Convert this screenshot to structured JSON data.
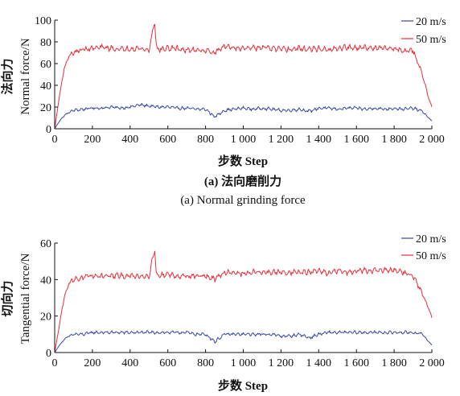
{
  "chart_data": [
    {
      "type": "line",
      "caption_cn": "(a) 法向磨削力",
      "caption_en": "(a) Normal grinding force",
      "xlabel": "步数  Step",
      "ylabel_cn": "法向力",
      "ylabel_en": "Normal force/N",
      "xlim": [
        0,
        2000
      ],
      "ylim": [
        0,
        100
      ],
      "xticks": [
        "0",
        "200",
        "400",
        "600",
        "800",
        "1 000",
        "1 200",
        "1 400",
        "1 600",
        "1 800",
        "2 000"
      ],
      "yticks": [
        "0",
        "20",
        "40",
        "60",
        "80",
        "100"
      ],
      "legend_position": "top-right",
      "series": [
        {
          "name": "20 m/s",
          "color": "#3848a8",
          "x": [
            0,
            25,
            50,
            75,
            100,
            150,
            200,
            250,
            300,
            350,
            400,
            450,
            500,
            550,
            600,
            650,
            700,
            750,
            800,
            850,
            900,
            950,
            1000,
            1050,
            1100,
            1150,
            1200,
            1250,
            1300,
            1350,
            1400,
            1450,
            1500,
            1550,
            1600,
            1650,
            1700,
            1750,
            1800,
            1850,
            1900,
            1950,
            2000
          ],
          "values": [
            0,
            7,
            12,
            15,
            17,
            18,
            19,
            19,
            20,
            19,
            20,
            22,
            21,
            20,
            20,
            19,
            19,
            18,
            18,
            11,
            17,
            18,
            19,
            18,
            19,
            18,
            17,
            17,
            18,
            16,
            19,
            19,
            18,
            19,
            19,
            18,
            19,
            18,
            19,
            18,
            19,
            16,
            7
          ]
        },
        {
          "name": "50 m/s",
          "color": "#e8303a",
          "x": [
            0,
            25,
            50,
            75,
            100,
            150,
            200,
            250,
            300,
            350,
            400,
            450,
            500,
            530,
            540,
            550,
            600,
            650,
            700,
            750,
            800,
            850,
            900,
            950,
            1000,
            1050,
            1100,
            1150,
            1200,
            1250,
            1300,
            1350,
            1400,
            1450,
            1500,
            1550,
            1600,
            1650,
            1700,
            1750,
            1800,
            1850,
            1900,
            1950,
            1980,
            2000
          ],
          "values": [
            0,
            30,
            55,
            67,
            70,
            73,
            74,
            75,
            74,
            73,
            74,
            74,
            72,
            100,
            73,
            73,
            74,
            74,
            72,
            73,
            72,
            70,
            76,
            75,
            74,
            74,
            75,
            74,
            73,
            73,
            74,
            73,
            74,
            72,
            74,
            75,
            74,
            75,
            74,
            74,
            74,
            72,
            72,
            50,
            30,
            20
          ]
        }
      ]
    },
    {
      "type": "line",
      "xlabel": "步数  Step",
      "ylabel_cn": "切向力",
      "ylabel_en": "Tangential force/N",
      "xlim": [
        0,
        2000
      ],
      "ylim": [
        0,
        60
      ],
      "xticks": [
        "0",
        "200",
        "400",
        "600",
        "800",
        "1 000",
        "1 200",
        "1 400",
        "1 600",
        "1 800",
        "2 000"
      ],
      "yticks": [
        "0",
        "20",
        "40",
        "60"
      ],
      "legend_position": "top-right",
      "series": [
        {
          "name": "20 m/s",
          "color": "#3848a8",
          "x": [
            0,
            25,
            50,
            75,
            100,
            150,
            200,
            250,
            300,
            350,
            400,
            450,
            500,
            550,
            600,
            650,
            700,
            750,
            800,
            850,
            900,
            950,
            1000,
            1050,
            1100,
            1150,
            1200,
            1250,
            1300,
            1350,
            1400,
            1450,
            1500,
            1550,
            1600,
            1650,
            1700,
            1750,
            1800,
            1850,
            1900,
            1950,
            2000
          ],
          "values": [
            0,
            4,
            7,
            9,
            10,
            10,
            11,
            11,
            11,
            11,
            11,
            11,
            11,
            11,
            11,
            11,
            11,
            10,
            10,
            6,
            10,
            10,
            10,
            10,
            10,
            10,
            9,
            9,
            10,
            8,
            10,
            11,
            11,
            11,
            11,
            11,
            11,
            11,
            11,
            11,
            11,
            10,
            4
          ]
        },
        {
          "name": "50 m/s",
          "color": "#e8303a",
          "x": [
            0,
            25,
            50,
            75,
            100,
            150,
            200,
            250,
            300,
            350,
            400,
            450,
            500,
            530,
            540,
            550,
            600,
            650,
            700,
            750,
            800,
            850,
            900,
            950,
            1000,
            1050,
            1100,
            1150,
            1200,
            1250,
            1300,
            1350,
            1400,
            1450,
            1500,
            1550,
            1600,
            1650,
            1700,
            1750,
            1800,
            1850,
            1900,
            1950,
            1980,
            2000
          ],
          "values": [
            0,
            15,
            30,
            38,
            40,
            41,
            42,
            42,
            42,
            42,
            42,
            42,
            42,
            57,
            42,
            42,
            43,
            42,
            42,
            42,
            42,
            40,
            44,
            44,
            43,
            44,
            44,
            44,
            44,
            44,
            44,
            44,
            45,
            43,
            45,
            44,
            45,
            45,
            45,
            45,
            45,
            44,
            42,
            32,
            25,
            19
          ]
        }
      ]
    }
  ]
}
